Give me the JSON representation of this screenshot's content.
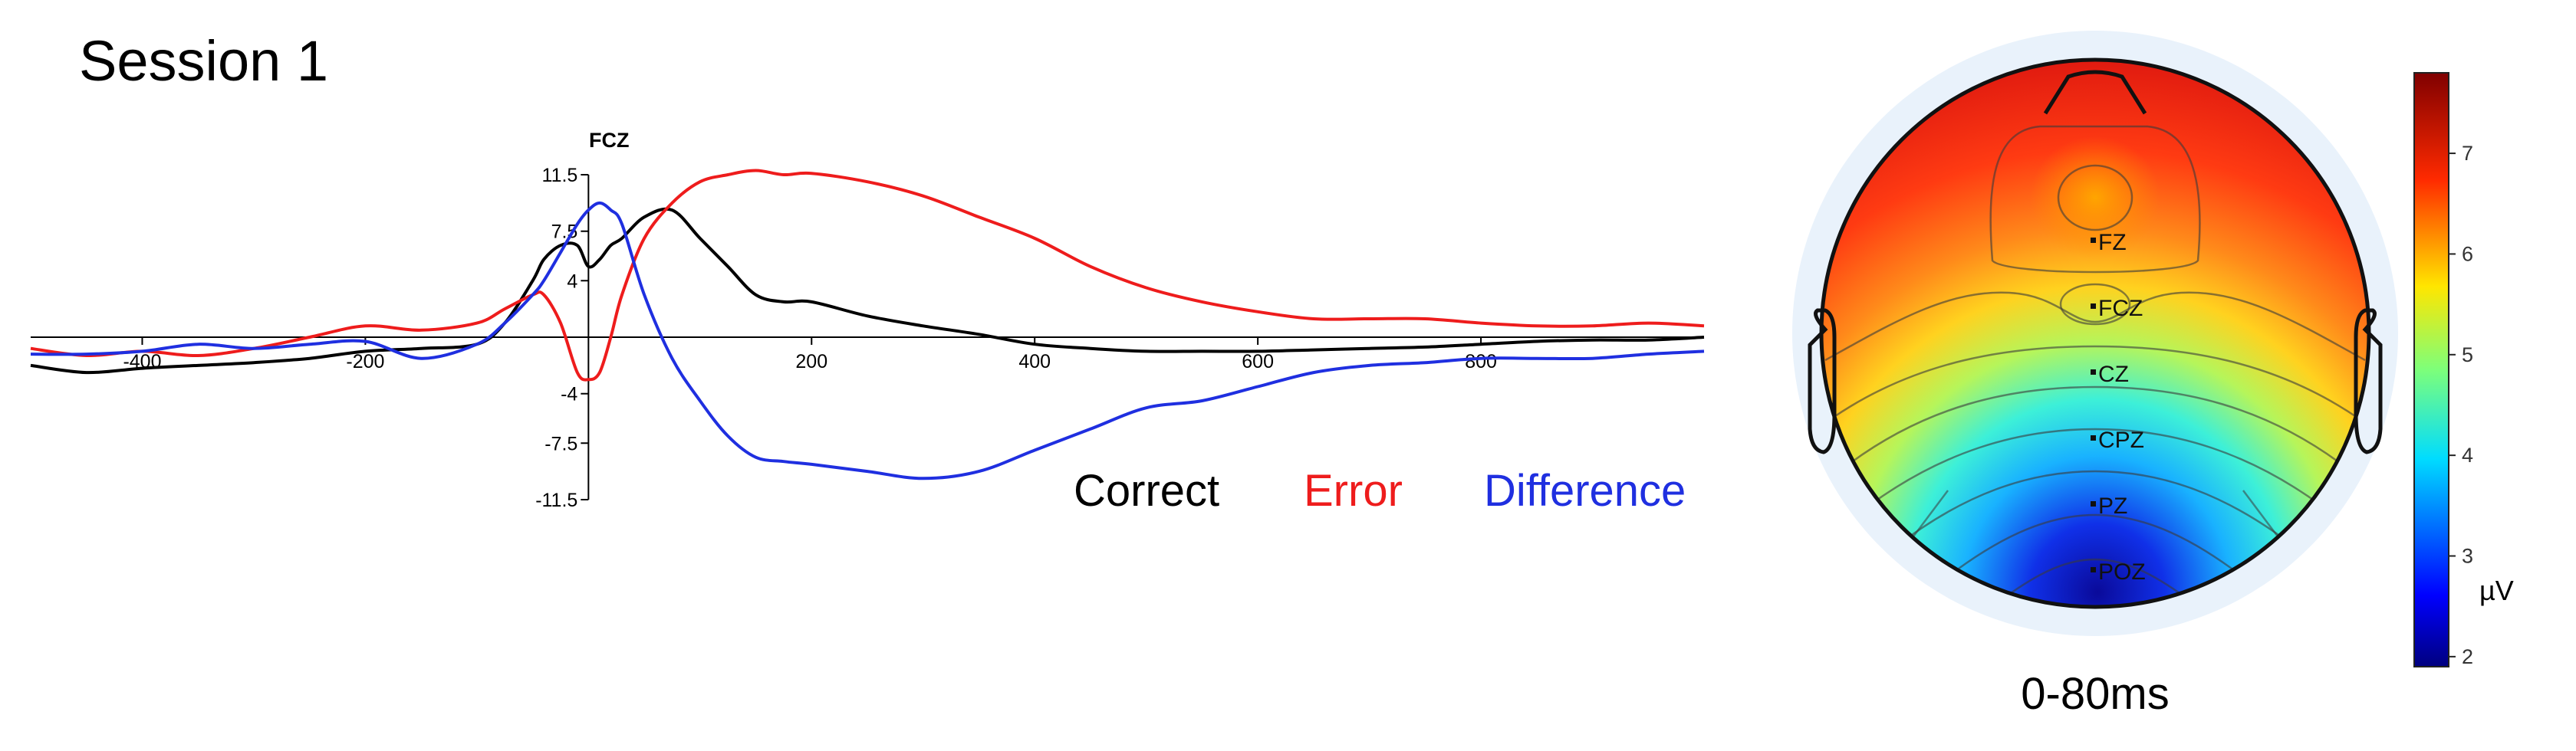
{
  "title": "Session 1",
  "colors": {
    "correct": "#000000",
    "error": "#ee1c1c",
    "difference": "#1f2fe0"
  },
  "chart_data": {
    "type": "line",
    "channel": "FCZ",
    "xlabel": "",
    "ylabel": "",
    "xlim": [
      -500,
      1000
    ],
    "ylim": [
      -11.5,
      11.5
    ],
    "x_ticks": [
      -400,
      -200,
      200,
      400,
      600,
      800
    ],
    "y_ticks": [
      11.5,
      7.5,
      4,
      -4,
      -7.5,
      -11.5
    ],
    "x": [
      -500,
      -450,
      -400,
      -350,
      -300,
      -250,
      -200,
      -150,
      -100,
      -75,
      -50,
      -40,
      -25,
      -10,
      0,
      10,
      20,
      30,
      50,
      75,
      100,
      125,
      150,
      175,
      200,
      250,
      300,
      350,
      400,
      450,
      500,
      550,
      600,
      650,
      700,
      750,
      800,
      850,
      900,
      950,
      1000
    ],
    "series": [
      {
        "name": "Correct",
        "color": "#000000",
        "values": [
          -2.0,
          -2.5,
          -2.2,
          -2.0,
          -1.8,
          -1.5,
          -1.0,
          -0.8,
          -0.5,
          1.0,
          4.0,
          5.5,
          6.5,
          6.5,
          5.0,
          5.5,
          6.5,
          7.0,
          8.5,
          9.0,
          7.0,
          5.0,
          3.0,
          2.5,
          2.5,
          1.5,
          0.8,
          0.2,
          -0.5,
          -0.8,
          -1.0,
          -1.0,
          -1.0,
          -0.9,
          -0.8,
          -0.7,
          -0.5,
          -0.3,
          -0.2,
          -0.2,
          0.0
        ]
      },
      {
        "name": "Error",
        "color": "#ee1c1c",
        "values": [
          -0.8,
          -1.3,
          -1.0,
          -1.3,
          -0.8,
          0.0,
          0.8,
          0.5,
          1.0,
          2.0,
          3.0,
          3.0,
          1.0,
          -2.5,
          -3.0,
          -2.5,
          0.0,
          3.0,
          7.0,
          9.5,
          11.0,
          11.5,
          11.8,
          11.5,
          11.6,
          11.0,
          10.0,
          8.5,
          7.0,
          5.0,
          3.5,
          2.5,
          1.8,
          1.3,
          1.3,
          1.3,
          1.0,
          0.8,
          0.8,
          1.0,
          0.8
        ]
      },
      {
        "name": "Difference",
        "color": "#1f2fe0",
        "values": [
          -1.2,
          -1.2,
          -1.0,
          -0.5,
          -0.8,
          -0.5,
          -0.3,
          -1.5,
          -0.5,
          1.0,
          3.0,
          4.0,
          6.0,
          8.0,
          9.0,
          9.5,
          9.0,
          8.0,
          3.0,
          -1.5,
          -4.5,
          -7.0,
          -8.5,
          -8.8,
          -9.0,
          -9.5,
          -10.0,
          -9.5,
          -8.0,
          -6.5,
          -5.0,
          -4.5,
          -3.5,
          -2.5,
          -2.0,
          -1.8,
          -1.5,
          -1.5,
          -1.5,
          -1.2,
          -1.0
        ]
      }
    ]
  },
  "topomap": {
    "time_window": "0-80ms",
    "unit": "µV",
    "colorbar_range": [
      1.9,
      7.8
    ],
    "colorbar_ticks": [
      "7",
      "6",
      "5",
      "4",
      "3",
      "2"
    ],
    "electrodes": [
      "FZ",
      "FCZ",
      "CZ",
      "CPZ",
      "PZ",
      "POZ"
    ]
  }
}
